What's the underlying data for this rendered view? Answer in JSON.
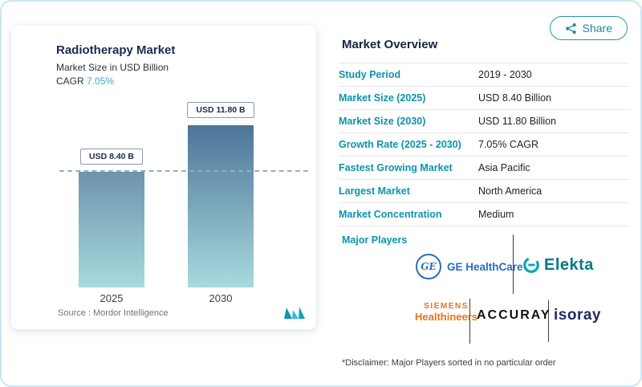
{
  "page": {
    "share_button": {
      "label": "Share"
    },
    "disclaimer": "*Disclaimer: Major Players sorted in no particular order"
  },
  "chart_card": {
    "title": "Radiotherapy Market",
    "subtitle": "Market Size in USD Billion",
    "cagr_label": "CAGR",
    "cagr_value": "7.05%",
    "source": "Source :  Mordor Intelligence"
  },
  "chart_data": {
    "type": "bar",
    "title": "Radiotherapy Market",
    "ylabel": "Market Size in USD Billion",
    "categories": [
      "2025",
      "2030"
    ],
    "values": [
      8.4,
      11.8
    ],
    "bar_labels": [
      "USD 8.40 B",
      "USD 11.80 B"
    ],
    "reference_line": {
      "value": 8.4,
      "style": "dashed"
    },
    "ylim": [
      0,
      13
    ],
    "grid": false,
    "cagr": "7.05%"
  },
  "market_overview": {
    "heading": "Market Overview",
    "rows": [
      {
        "label": "Study Period",
        "value": "2019 - 2030"
      },
      {
        "label": "Market Size (2025)",
        "value": "USD 8.40 Billion"
      },
      {
        "label": "Market Size (2030)",
        "value": "USD 11.80 Billion"
      },
      {
        "label": "Growth Rate (2025 - 2030)",
        "value": "7.05% CAGR"
      },
      {
        "label": "Fastest Growing Market",
        "value": "Asia Pacific"
      },
      {
        "label": "Largest Market",
        "value": "North America"
      },
      {
        "label": "Market Concentration",
        "value": "Medium"
      }
    ],
    "major_players": {
      "label": "Major Players",
      "players": [
        {
          "name": "GE HealthCare",
          "monogram": "GE",
          "wordmark": "GE HealthCare"
        },
        {
          "name": "Elekta",
          "wordmark": "Elekta"
        },
        {
          "name": "Siemens Healthineers",
          "line1": "SIEMENS",
          "line2": "Healthineers"
        },
        {
          "name": "Accuray",
          "wordmark": "ACCURAY"
        },
        {
          "name": "Isoray",
          "wordmark": "isoray"
        }
      ]
    }
  },
  "colors": {
    "accent_teal": "#1b9cb4",
    "heading_navy": "#16243d",
    "table_label_teal": "#0b94ad",
    "bar_gradient_top": "#4e7499",
    "bar_gradient_bottom": "#a8dadd",
    "ge_blue": "#2a6ebb",
    "elekta_teal": "#007a87",
    "siemens_orange": "#e8731a",
    "accuray_black": "#111111",
    "isoray_navy": "#232a60",
    "page_border_blue": "#c9e7f3"
  }
}
